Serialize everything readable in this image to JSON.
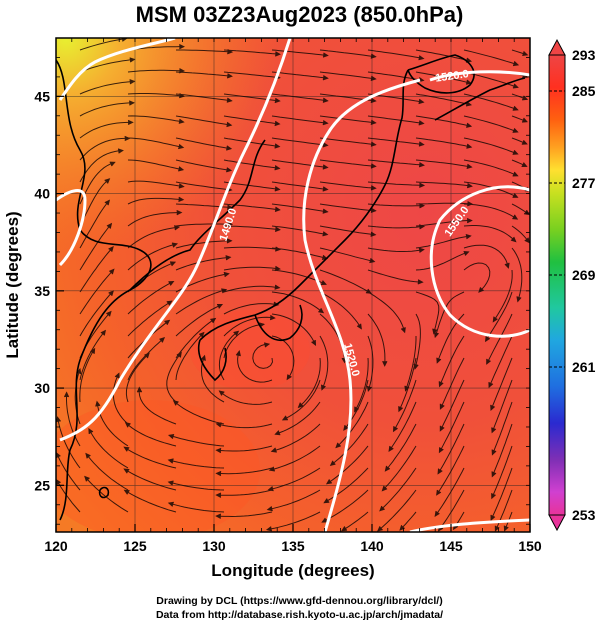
{
  "title": "MSM 03Z23Aug2023 (850.0hPa)",
  "map": {
    "lon_range": [
      120,
      150
    ],
    "lat_range": [
      22.6,
      48
    ],
    "x_ticks": [
      "120",
      "125",
      "130",
      "135",
      "140",
      "145",
      "150"
    ],
    "y_ticks": [
      "25",
      "30",
      "35",
      "40",
      "45"
    ],
    "xlabel": "Longitude (degrees)",
    "ylabel": "Latitude  (degrees)",
    "contour_labels": [
      "1520.0",
      "1490.0",
      "1520.0",
      "1550.0"
    ]
  },
  "colorbar": {
    "ticks": [
      "293",
      "285",
      "277",
      "269",
      "261",
      "253"
    ],
    "colors": [
      "#e8339a",
      "#ff55ff",
      "#7f2fb5",
      "#2a2ad0",
      "#1f6fe0",
      "#20a7e0",
      "#20c8a0",
      "#20c040",
      "#78d020",
      "#c8e020",
      "#ffe030",
      "#ffa020",
      "#ff6010",
      "#ff3020",
      "#ee4545"
    ]
  },
  "credits": {
    "line1": "Drawing by DCL (https://www.gfd-dennou.org/library/dcl/)",
    "line2": "Data from http://database.rish.kyoto-u.ac.jp/arch/jmadata/"
  }
}
